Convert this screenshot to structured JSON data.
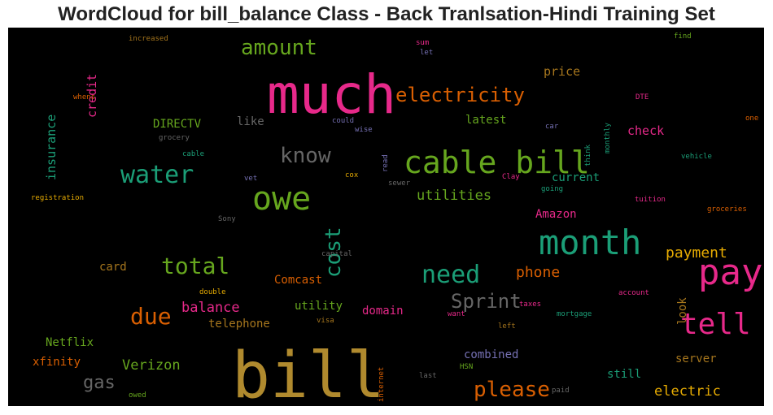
{
  "title": "WordCloud for bill_balance Class - Back Tranlsation-Hindi Training Set",
  "words": [
    {
      "text": "bill",
      "color": "#b08a2e"
    },
    {
      "text": "much",
      "color": "#e7298a"
    },
    {
      "text": "month",
      "color": "#1b9e77"
    },
    {
      "text": "pay",
      "color": "#e7298a"
    },
    {
      "text": "cable bill",
      "color": "#66a61e"
    },
    {
      "text": "owe",
      "color": "#66a61e"
    },
    {
      "text": "tell",
      "color": "#e7298a"
    },
    {
      "text": "water",
      "color": "#1b9e77"
    },
    {
      "text": "need",
      "color": "#1b9e77"
    },
    {
      "text": "total",
      "color": "#66a61e"
    },
    {
      "text": "know",
      "color": "#666666"
    },
    {
      "text": "amount",
      "color": "#66a61e"
    },
    {
      "text": "electricity",
      "color": "#d95f02"
    },
    {
      "text": "cost",
      "color": "#1b9e77"
    },
    {
      "text": "due",
      "color": "#d95f02"
    },
    {
      "text": "please",
      "color": "#d95f02"
    },
    {
      "text": "Sprint",
      "color": "#666666"
    },
    {
      "text": "utilities",
      "color": "#66a61e"
    },
    {
      "text": "payment",
      "color": "#e6ab02"
    },
    {
      "text": "phone",
      "color": "#d95f02"
    },
    {
      "text": "balance",
      "color": "#e7298a"
    },
    {
      "text": "gas",
      "color": "#666666"
    },
    {
      "text": "Verizon",
      "color": "#66a61e"
    },
    {
      "text": "electric",
      "color": "#e6ab02"
    },
    {
      "text": "price",
      "color": "#a6761d"
    },
    {
      "text": "insurance",
      "color": "#1b9e77"
    },
    {
      "text": "credit",
      "color": "#e7298a"
    },
    {
      "text": "DIRECTV",
      "color": "#66a61e"
    },
    {
      "text": "like",
      "color": "#666666"
    },
    {
      "text": "latest",
      "color": "#66a61e"
    },
    {
      "text": "check",
      "color": "#e7298a"
    },
    {
      "text": "current",
      "color": "#1b9e77"
    },
    {
      "text": "Amazon",
      "color": "#e7298a"
    },
    {
      "text": "card",
      "color": "#a6761d"
    },
    {
      "text": "Comcast",
      "color": "#d95f02"
    },
    {
      "text": "look",
      "color": "#a6761d"
    },
    {
      "text": "utility",
      "color": "#66a61e"
    },
    {
      "text": "domain",
      "color": "#e7298a"
    },
    {
      "text": "telephone",
      "color": "#a6761d"
    },
    {
      "text": "Netflix",
      "color": "#66a61e"
    },
    {
      "text": "xfinity",
      "color": "#d95f02"
    },
    {
      "text": "combined",
      "color": "#7570b3"
    },
    {
      "text": "server",
      "color": "#a6761d"
    },
    {
      "text": "still",
      "color": "#1b9e77"
    },
    {
      "text": "increased",
      "color": "#a6761d"
    },
    {
      "text": "sum",
      "color": "#e7298a"
    },
    {
      "text": "let",
      "color": "#7570b3"
    },
    {
      "text": "find",
      "color": "#66a61e"
    },
    {
      "text": "whens",
      "color": "#d95f02"
    },
    {
      "text": "DTE",
      "color": "#e7298a"
    },
    {
      "text": "monthly",
      "color": "#1b9e77"
    },
    {
      "text": "one",
      "color": "#d95f02"
    },
    {
      "text": "could",
      "color": "#7570b3"
    },
    {
      "text": "wise",
      "color": "#7570b3"
    },
    {
      "text": "car",
      "color": "#7570b3"
    },
    {
      "text": "grocery",
      "color": "#666666"
    },
    {
      "text": "read",
      "color": "#7570b3"
    },
    {
      "text": "think",
      "color": "#1b9e77"
    },
    {
      "text": "cable",
      "color": "#1b9e77"
    },
    {
      "text": "vehicle",
      "color": "#1b9e77"
    },
    {
      "text": "vet",
      "color": "#7570b3"
    },
    {
      "text": "cox",
      "color": "#e6ab02"
    },
    {
      "text": "Clay",
      "color": "#e7298a"
    },
    {
      "text": "sewer",
      "color": "#666666"
    },
    {
      "text": "going",
      "color": "#1b9e77"
    },
    {
      "text": "registration",
      "color": "#e6ab02"
    },
    {
      "text": "tuition",
      "color": "#e7298a"
    },
    {
      "text": "Sony",
      "color": "#666666"
    },
    {
      "text": "groceries",
      "color": "#d95f02"
    },
    {
      "text": "capital",
      "color": "#666666"
    },
    {
      "text": "double",
      "color": "#e6ab02"
    },
    {
      "text": "taxes",
      "color": "#e7298a"
    },
    {
      "text": "account",
      "color": "#e7298a"
    },
    {
      "text": "want",
      "color": "#e7298a"
    },
    {
      "text": "mortgage",
      "color": "#1b9e77"
    },
    {
      "text": "visa",
      "color": "#a6761d"
    },
    {
      "text": "left",
      "color": "#a6761d"
    },
    {
      "text": "internet",
      "color": "#d95f02"
    },
    {
      "text": "HSN",
      "color": "#66a61e"
    },
    {
      "text": "last",
      "color": "#666666"
    },
    {
      "text": "owed",
      "color": "#66a61e"
    },
    {
      "text": "paid",
      "color": "#666666"
    }
  ]
}
